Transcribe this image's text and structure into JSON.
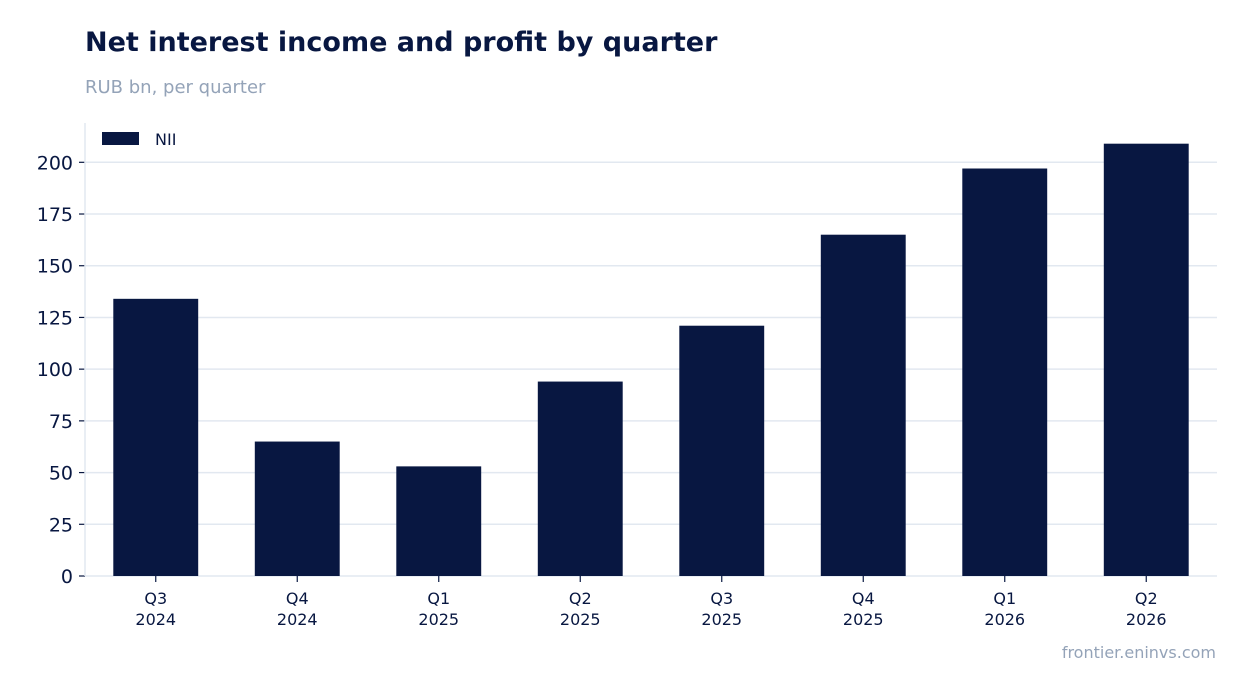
{
  "header": {
    "title": "Net interest income and profit by quarter",
    "subtitle": "RUB bn, per quarter"
  },
  "footer": {
    "source": "frontier.eninvs.com"
  },
  "colors": {
    "bar": "#081741",
    "grid": "#e2e8f0",
    "text": "#081741",
    "muted": "#94a3b8"
  },
  "chart_data": {
    "type": "bar",
    "categories": [
      [
        "Q3",
        "2024"
      ],
      [
        "Q4",
        "2024"
      ],
      [
        "Q1",
        "2025"
      ],
      [
        "Q2",
        "2025"
      ],
      [
        "Q3",
        "2025"
      ],
      [
        "Q4",
        "2025"
      ],
      [
        "Q1",
        "2026"
      ],
      [
        "Q2",
        "2026"
      ]
    ],
    "series": [
      {
        "name": "NII",
        "values": [
          134,
          65,
          53,
          94,
          121,
          165,
          197,
          209
        ]
      }
    ],
    "title": "Net interest income and profit by quarter",
    "subtitle": "RUB bn, per quarter",
    "xlabel": "",
    "ylabel": "",
    "ylim": [
      0,
      219
    ],
    "yticks": [
      0,
      25,
      50,
      75,
      100,
      125,
      150,
      175,
      200
    ],
    "grid": "y",
    "legend": "top-left"
  }
}
